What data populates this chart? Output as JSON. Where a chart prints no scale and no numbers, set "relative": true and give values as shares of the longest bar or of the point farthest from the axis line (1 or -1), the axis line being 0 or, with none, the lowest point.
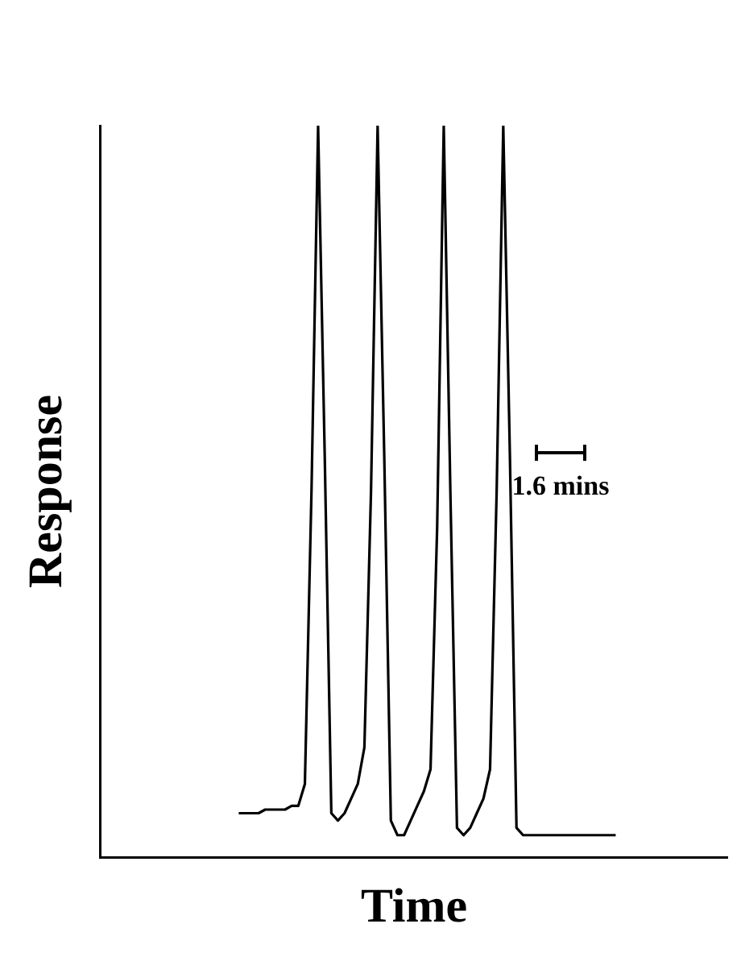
{
  "chart_data": {
    "type": "line",
    "relative": true,
    "xlabel": "Time",
    "ylabel": "Response",
    "annotations": [
      "1.6 mins"
    ],
    "legend": false,
    "grid": false,
    "marker": "none",
    "line_style": "solid",
    "categories": [
      null,
      null,
      null,
      null,
      null,
      null,
      null,
      null,
      null,
      null,
      null,
      null,
      null,
      null,
      null,
      null,
      null,
      null,
      null,
      null,
      null,
      null,
      null,
      null,
      null,
      null,
      null,
      null,
      null,
      null,
      null,
      null,
      null,
      null,
      null,
      null,
      null,
      null,
      null,
      null,
      null,
      null,
      null,
      null,
      null,
      null,
      null,
      null,
      null,
      null,
      null,
      null,
      null,
      null,
      null,
      null,
      null,
      null,
      null,
      null,
      null,
      null,
      null,
      null,
      null,
      null,
      null,
      null,
      null,
      null,
      null,
      null,
      null,
      null,
      null,
      null,
      null,
      null,
      null,
      null,
      null,
      null,
      null,
      null,
      null,
      null,
      null,
      null,
      null,
      null,
      null,
      null,
      null,
      null,
      null,
      null
    ],
    "series": [
      {
        "color": "#000000",
        "values": [
          null,
          null,
          null,
          null,
          null,
          null,
          null,
          null,
          null,
          null,
          null,
          null,
          null,
          null,
          null,
          null,
          null,
          null,
          null,
          null,
          null,
          0.06,
          0.06,
          0.06,
          0.06,
          0.065,
          0.065,
          0.065,
          0.065,
          0.07,
          0.07,
          0.1,
          0.5,
          1,
          0.55,
          0.06,
          0.05,
          0.06,
          0.08,
          0.1,
          0.15,
          0.5,
          1,
          0.55,
          0.05,
          0.03,
          0.03,
          0.05,
          0.07,
          0.09,
          0.12,
          0.45,
          1,
          0.5,
          0.04,
          0.03,
          0.04,
          0.06,
          0.08,
          0.12,
          0.5,
          1,
          0.55,
          0.04,
          0.03,
          0.03,
          0.03,
          0.03,
          0.03,
          0.03,
          0.03,
          0.03,
          0.03,
          0.03,
          0.03,
          0.03,
          0.03,
          0.03,
          0.03,
          null,
          null,
          null,
          null,
          null,
          null,
          null,
          null,
          null,
          null,
          null,
          null,
          null,
          null,
          null,
          null,
          null
        ]
      }
    ]
  }
}
